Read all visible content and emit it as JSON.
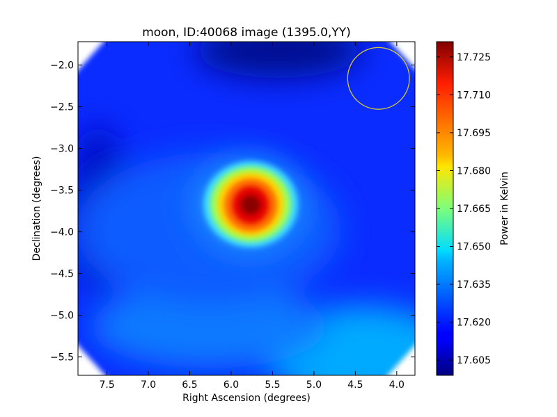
{
  "chart_data": {
    "type": "heatmap",
    "title": "moon, ID:40068 image (1395.0,YY)",
    "xlabel": "Right Ascension (degrees)",
    "ylabel": "Declination (degrees)",
    "colorbar_label": "Power in Kelvin",
    "colormap": "jet",
    "xlim": [
      7.85,
      3.78
    ],
    "ylim": [
      -5.72,
      -1.72
    ],
    "x_ticks": [
      7.5,
      7.0,
      6.5,
      6.0,
      5.5,
      5.0,
      4.5,
      4.0
    ],
    "x_tick_labels": [
      "7.5",
      "7.0",
      "6.5",
      "6.0",
      "5.5",
      "5.0",
      "4.5",
      "4.0"
    ],
    "y_ticks": [
      -2.0,
      -2.5,
      -3.0,
      -3.5,
      -4.0,
      -4.5,
      -5.0,
      -5.5
    ],
    "y_tick_labels": [
      "−2.0",
      "−2.5",
      "−3.0",
      "−3.5",
      "−4.0",
      "−4.5",
      "−5.0",
      "−5.5"
    ],
    "colorbar_range": [
      17.599,
      17.731
    ],
    "colorbar_ticks": [
      17.605,
      17.62,
      17.635,
      17.65,
      17.665,
      17.68,
      17.695,
      17.71,
      17.725
    ],
    "colorbar_tick_labels": [
      "17.605",
      "17.620",
      "17.635",
      "17.650",
      "17.665",
      "17.680",
      "17.695",
      "17.710",
      "17.725"
    ],
    "background_level": 17.616,
    "features": [
      {
        "kind": "peak",
        "ra": 5.75,
        "dec": -3.68,
        "peak_value": 17.729
      },
      {
        "kind": "low",
        "ra": 5.2,
        "dec": -1.85,
        "value": 17.603
      },
      {
        "kind": "low",
        "ra": 7.55,
        "dec": -3.4,
        "value": 17.607
      },
      {
        "kind": "high",
        "ra": 4.4,
        "dec": -5.45,
        "value": 17.636
      }
    ],
    "beam_circle": {
      "ra": 4.22,
      "dec": -2.16,
      "radius_deg": 0.37,
      "color": "#d4c83a"
    },
    "grid": false
  }
}
